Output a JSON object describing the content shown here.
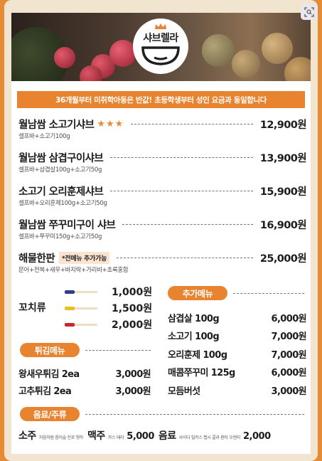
{
  "logo": {
    "text": "샤브렐라"
  },
  "banner": {
    "text": "36개월부터 미취학아동은 반값! 초등학생부터 성인 요금과 동일합니다"
  },
  "menu_items": [
    {
      "name": "월남쌈 소고기샤브",
      "stars": "★★★",
      "desc": "셀프바+소고기100g",
      "price": "12,900원"
    },
    {
      "name": "월남쌈 삼겹구이샤브",
      "desc": "셀프바+삼겹살100g+소고기50g",
      "price": "13,900원"
    },
    {
      "name": "소고기 오리훈제샤브",
      "desc": "셀프바+오리훈제100g+소고기50g",
      "price": "15,900원"
    },
    {
      "name": "월남쌈 쭈꾸미구이 샤브",
      "desc": "셀프바+쭈꾸미150g+소고기50g",
      "price": "16,900원"
    },
    {
      "name": "해물한판",
      "note": "*전메뉴 추가가능",
      "desc": "문어+전복+새우+바지락+가리비+초록홍합",
      "price": "25,000원"
    }
  ],
  "skewers": {
    "label": "꼬치류",
    "items": [
      {
        "price": "1,000원",
        "color": "#2f3f8f"
      },
      {
        "price": "1,500원",
        "color": "#e6c01e"
      },
      {
        "price": "2,000원",
        "color": "#c8262b"
      }
    ]
  },
  "extras": {
    "title": "추가메뉴",
    "items": [
      {
        "name": "삼겹살 100g",
        "price": "6,000원"
      },
      {
        "name": "소고기 100g",
        "price": "7,000원"
      },
      {
        "name": "오리훈제 100g",
        "price": "7,000원"
      },
      {
        "name": "매콤쭈꾸미 125g",
        "price": "6,000원"
      },
      {
        "name": "모듬버섯",
        "price": "3,000원"
      }
    ]
  },
  "fried": {
    "title": "튀김메뉴",
    "items": [
      {
        "name": "왕새우튀김 2ea",
        "price": "3,000원"
      },
      {
        "name": "고추튀김 2ea",
        "price": "3,000원"
      }
    ]
  },
  "drinks": {
    "title": "음료/주류",
    "items": [
      {
        "name": "소주",
        "sub": "처음처럼 참이슬 진로 청하",
        "price": ""
      },
      {
        "name": "맥주",
        "sub": "카스 테라",
        "price": "5,000"
      },
      {
        "name": "음료",
        "sub": "사이다 밀키스 펩시 콜라 환타 오렌지",
        "price": "2,000"
      }
    ]
  },
  "colors": {
    "accent": "#e8832f",
    "background": "#e58a35"
  }
}
